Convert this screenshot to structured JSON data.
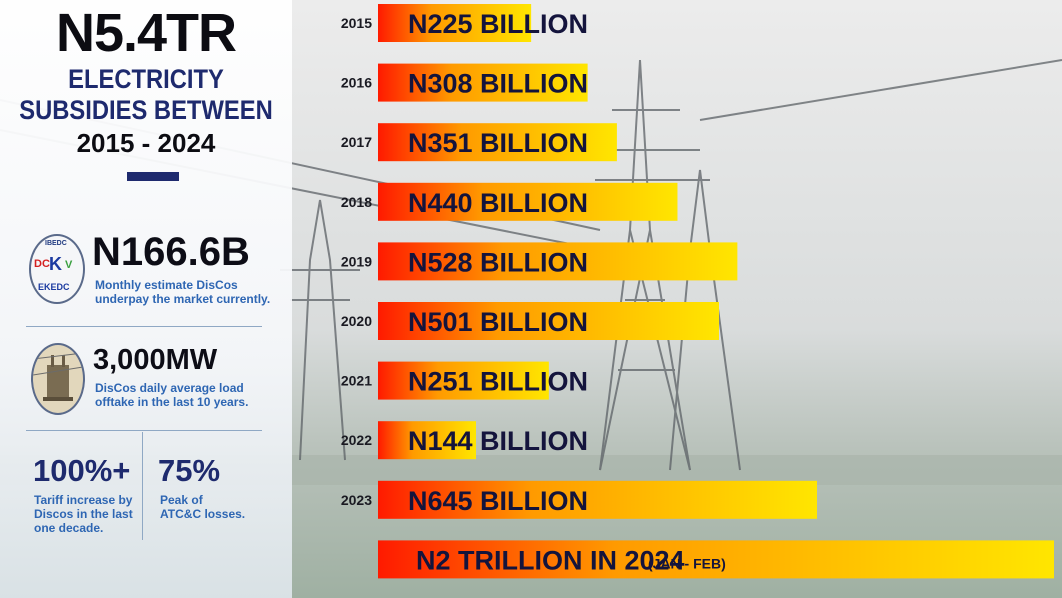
{
  "headline": {
    "value": "N5.4TR",
    "line1": "ELECTRICITY",
    "line2": "SUBSIDIES BETWEEN",
    "years": "2015 - 2024"
  },
  "stats": {
    "monthly": {
      "value": "N166.6B",
      "desc1": "Monthly estimate DisCos",
      "desc2": "underpay the market currently."
    },
    "load": {
      "value": "3,000MW",
      "desc1": "DisCos daily average load",
      "desc2": "offtake in the last 10 years."
    },
    "tariff": {
      "value": "100%+",
      "desc1": "Tariff increase by",
      "desc2": "Discos in the last",
      "desc3": "one decade."
    },
    "losses": {
      "value": "75%",
      "desc1": "Peak of",
      "desc2": "ATC&C losses."
    }
  },
  "logo_text": {
    "top": "IBEDC",
    "dc": "DC",
    "k": "K",
    "v": "V",
    "bottom": "EKEDC"
  },
  "colors": {
    "bar_start": "#ff1a00",
    "bar_mid": "#ff9a00",
    "bar_end": "#ffe600",
    "navy": "#1e2a6e",
    "label": "#14143c"
  },
  "chart_data": {
    "type": "bar",
    "orientation": "horizontal",
    "unit": "billion naira",
    "categories": [
      "2015",
      "2016",
      "2017",
      "2018",
      "2019",
      "2020",
      "2021",
      "2022",
      "2023"
    ],
    "values": [
      225,
      308,
      351,
      440,
      528,
      501,
      251,
      144,
      645
    ],
    "labels": [
      "N225 BILLION",
      "N308 BILLION",
      "N351 BILLION",
      "N440 BILLION",
      "N528 BILLION",
      "N501 BILLION",
      "N251 BILLION",
      "N144 BILLION",
      "N645 BILLION"
    ],
    "final_bar": {
      "value": 2000,
      "label": "N2 TRILLION IN 2024",
      "note": "(JAN - FEB)"
    }
  }
}
